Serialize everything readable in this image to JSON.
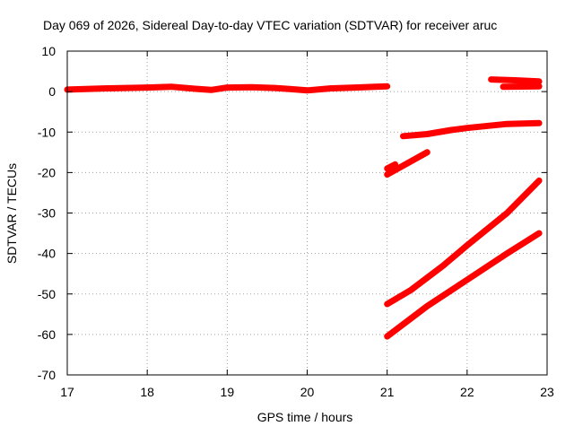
{
  "chart_data": {
    "type": "line",
    "title": "Day 069 of 2026, Sidereal Day-to-day VTEC variation (SDTVAR) for receiver aruc",
    "xlabel": "GPS time / hours",
    "ylabel": "SDTVAR / TECUs",
    "xlim": [
      17,
      23
    ],
    "ylim": [
      -70,
      10
    ],
    "xticks": [
      17,
      18,
      19,
      20,
      21,
      22,
      23
    ],
    "yticks": [
      10,
      0,
      -10,
      -20,
      -30,
      -40,
      -50,
      -60,
      -70
    ],
    "grid": true,
    "legend": "none",
    "series_color": "#ff0000",
    "series": [
      {
        "x": [
          17.0,
          17.5,
          18.0,
          18.3,
          18.6,
          18.8,
          19.0,
          19.3,
          19.6,
          19.8,
          20.0,
          20.3,
          20.6,
          21.0
        ],
        "y": [
          0.5,
          0.8,
          1.0,
          1.2,
          0.7,
          0.4,
          1.0,
          1.1,
          0.9,
          0.6,
          0.3,
          0.8,
          1.0,
          1.3
        ]
      },
      {
        "x": [
          21.2,
          21.5,
          21.8,
          22.0,
          22.5,
          22.9
        ],
        "y": [
          -11,
          -10.5,
          -9.5,
          -9,
          -8,
          -7.8
        ]
      },
      {
        "x": [
          22.3,
          22.6,
          22.9
        ],
        "y": [
          3.0,
          2.8,
          2.5
        ]
      },
      {
        "x": [
          22.45,
          22.9
        ],
        "y": [
          1.2,
          1.3
        ]
      },
      {
        "x": [
          21.0,
          21.1
        ],
        "y": [
          -19,
          -18
        ]
      },
      {
        "x": [
          21.0,
          21.5
        ],
        "y": [
          -20.5,
          -15
        ]
      },
      {
        "x": [
          21.0,
          21.3,
          21.7,
          22.0,
          22.5,
          22.9
        ],
        "y": [
          -52.5,
          -49,
          -43,
          -38,
          -30,
          -22
        ]
      },
      {
        "x": [
          21.0,
          21.5,
          22.0,
          22.5,
          22.9
        ],
        "y": [
          -60.5,
          -53,
          -46.5,
          -40,
          -35
        ]
      }
    ]
  }
}
